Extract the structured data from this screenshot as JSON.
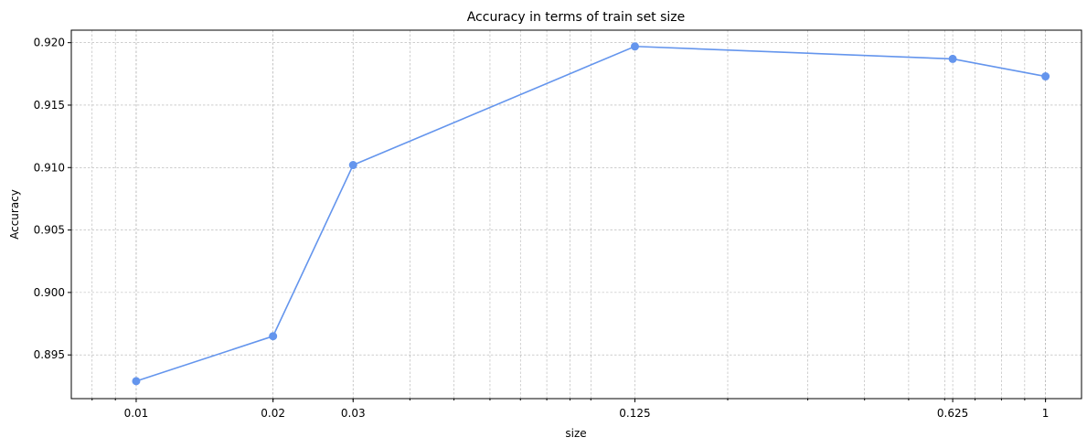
{
  "chart_data": {
    "type": "line",
    "title": "Accuracy in terms of train set size",
    "xlabel": "size",
    "ylabel": "Accuracy",
    "x_scale": "log",
    "xlim": [
      0.0072,
      1.2
    ],
    "ylim": [
      0.8915,
      0.921
    ],
    "grid": true,
    "grid_minor_x": true,
    "x_ticks": [
      0.01,
      0.02,
      0.03,
      0.125,
      0.625,
      1
    ],
    "x_tick_labels": [
      "0.01",
      "0.02",
      "0.03",
      "0.125",
      "0.625",
      "1"
    ],
    "y_ticks": [
      0.895,
      0.9,
      0.905,
      0.91,
      0.915,
      0.92
    ],
    "y_tick_labels": [
      "0.895",
      "0.900",
      "0.905",
      "0.910",
      "0.915",
      "0.920"
    ],
    "series": [
      {
        "color": "#6495ed",
        "marker": "circle",
        "x": [
          0.01,
          0.02,
          0.03,
          0.125,
          0.625,
          1
        ],
        "y": [
          0.8929,
          0.8965,
          0.9102,
          0.9197,
          0.9187,
          0.9173
        ]
      }
    ]
  }
}
